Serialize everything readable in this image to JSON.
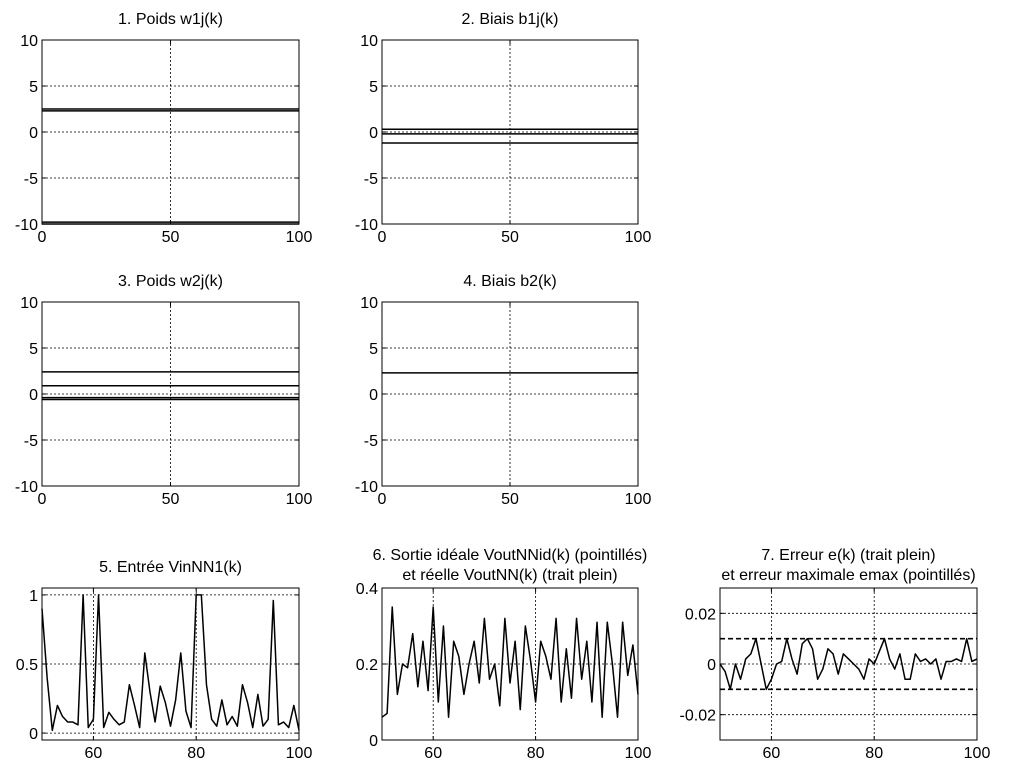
{
  "chart_data": [
    {
      "id": "p1",
      "type": "line",
      "title": "1. Poids w1j(k)",
      "xlim": [
        0,
        100
      ],
      "ylim": [
        -10,
        10
      ],
      "xticks": [
        0,
        50,
        100
      ],
      "yticks": [
        -10,
        -5,
        0,
        5,
        10
      ],
      "grid": true,
      "series": [
        {
          "x": [
            0,
            100
          ],
          "y": [
            2.5,
            2.5
          ],
          "color": "#000000"
        },
        {
          "x": [
            0,
            100
          ],
          "y": [
            2.3,
            2.3
          ],
          "color": "#000000"
        },
        {
          "x": [
            0,
            100
          ],
          "y": [
            -9.8,
            -9.8
          ],
          "color": "#000000"
        },
        {
          "x": [
            0,
            100
          ],
          "y": [
            -10,
            -10
          ],
          "color": "#000000"
        }
      ]
    },
    {
      "id": "p2",
      "type": "line",
      "title": "2. Biais b1j(k)",
      "xlim": [
        0,
        100
      ],
      "ylim": [
        -10,
        10
      ],
      "xticks": [
        0,
        50,
        100
      ],
      "yticks": [
        -10,
        -5,
        0,
        5,
        10
      ],
      "grid": true,
      "series": [
        {
          "x": [
            0,
            100
          ],
          "y": [
            0.3,
            0.3
          ],
          "color": "#000000"
        },
        {
          "x": [
            0,
            100
          ],
          "y": [
            -0.2,
            -0.2
          ],
          "color": "#000000"
        },
        {
          "x": [
            0,
            100
          ],
          "y": [
            -1.2,
            -1.2
          ],
          "color": "#000000"
        }
      ]
    },
    {
      "id": "p3",
      "type": "line",
      "title": "3. Poids w2j(k)",
      "xlim": [
        0,
        100
      ],
      "ylim": [
        -10,
        10
      ],
      "xticks": [
        0,
        50,
        100
      ],
      "yticks": [
        -10,
        -5,
        0,
        5,
        10
      ],
      "grid": true,
      "series": [
        {
          "x": [
            0,
            100
          ],
          "y": [
            2.4,
            2.4
          ],
          "color": "#000000"
        },
        {
          "x": [
            0,
            100
          ],
          "y": [
            0.9,
            0.9
          ],
          "color": "#000000"
        },
        {
          "x": [
            0,
            100
          ],
          "y": [
            -0.4,
            -0.4
          ],
          "color": "#000000"
        },
        {
          "x": [
            0,
            100
          ],
          "y": [
            -0.6,
            -0.6
          ],
          "color": "#000000"
        }
      ]
    },
    {
      "id": "p4",
      "type": "line",
      "title": "4. Biais b2(k)",
      "xlim": [
        0,
        100
      ],
      "ylim": [
        -10,
        10
      ],
      "xticks": [
        0,
        50,
        100
      ],
      "yticks": [
        -10,
        -5,
        0,
        5,
        10
      ],
      "grid": true,
      "series": [
        {
          "x": [
            0,
            100
          ],
          "y": [
            2.3,
            2.3
          ],
          "color": "#000000"
        }
      ]
    },
    {
      "id": "p5",
      "type": "line",
      "title": "5. Entrée VinNN1(k)",
      "xlim": [
        50,
        100
      ],
      "ylim": [
        -0.05,
        1.05
      ],
      "xticks": [
        60,
        80,
        100
      ],
      "yticks": [
        0,
        0.5,
        1
      ],
      "ytick_labels": [
        "0",
        "0.5",
        "1"
      ],
      "grid": true,
      "series": [
        {
          "x": [
            50,
            51,
            52,
            53,
            54,
            55,
            56,
            57,
            58,
            59,
            60,
            61,
            62,
            63,
            64,
            65,
            66,
            67,
            68,
            69,
            70,
            71,
            72,
            73,
            74,
            75,
            76,
            77,
            78,
            79,
            80,
            81,
            82,
            83,
            84,
            85,
            86,
            87,
            88,
            89,
            90,
            91,
            92,
            93,
            94,
            95,
            96,
            97,
            98,
            99,
            100
          ],
          "y": [
            0.9,
            0.4,
            0.02,
            0.2,
            0.12,
            0.08,
            0.08,
            0.06,
            1.0,
            0.04,
            0.1,
            1.0,
            0.04,
            0.15,
            0.1,
            0.06,
            0.08,
            0.35,
            0.2,
            0.04,
            0.58,
            0.3,
            0.08,
            0.34,
            0.22,
            0.05,
            0.24,
            0.58,
            0.16,
            0.04,
            1.0,
            1.0,
            0.35,
            0.1,
            0.05,
            0.24,
            0.06,
            0.12,
            0.05,
            0.35,
            0.22,
            0.04,
            0.28,
            0.05,
            0.1,
            0.96,
            0.06,
            0.08,
            0.04,
            0.2,
            0.02
          ],
          "color": "#000000"
        }
      ]
    },
    {
      "id": "p6",
      "type": "line",
      "title": "6. Sortie idéale VoutNNid(k) (pointillés)",
      "subtitle": "et réelle VoutNN(k) (trait plein)",
      "xlim": [
        50,
        100
      ],
      "ylim": [
        0,
        0.4
      ],
      "xticks": [
        60,
        80,
        100
      ],
      "yticks": [
        0,
        0.2,
        0.4
      ],
      "ytick_labels": [
        "0",
        "0.2",
        "0.4"
      ],
      "grid": true,
      "series": [
        {
          "x": [
            50,
            51,
            52,
            53,
            54,
            55,
            56,
            57,
            58,
            59,
            60,
            61,
            62,
            63,
            64,
            65,
            66,
            67,
            68,
            69,
            70,
            71,
            72,
            73,
            74,
            75,
            76,
            77,
            78,
            79,
            80,
            81,
            82,
            83,
            84,
            85,
            86,
            87,
            88,
            89,
            90,
            91,
            92,
            93,
            94,
            95,
            96,
            97,
            98,
            99,
            100
          ],
          "y": [
            0.06,
            0.07,
            0.35,
            0.12,
            0.2,
            0.19,
            0.28,
            0.14,
            0.26,
            0.13,
            0.35,
            0.1,
            0.3,
            0.06,
            0.26,
            0.22,
            0.12,
            0.2,
            0.26,
            0.15,
            0.32,
            0.16,
            0.2,
            0.09,
            0.32,
            0.15,
            0.26,
            0.08,
            0.3,
            0.21,
            0.1,
            0.26,
            0.22,
            0.16,
            0.32,
            0.1,
            0.24,
            0.11,
            0.32,
            0.16,
            0.26,
            0.1,
            0.31,
            0.06,
            0.31,
            0.2,
            0.06,
            0.31,
            0.17,
            0.25,
            0.12
          ],
          "color": "#000000"
        }
      ]
    },
    {
      "id": "p7",
      "type": "line",
      "title": "7. Erreur e(k) (trait plein)",
      "subtitle": "et erreur maximale emax (pointillés)",
      "xlim": [
        50,
        100
      ],
      "ylim": [
        -0.03,
        0.03
      ],
      "xticks": [
        60,
        80,
        100
      ],
      "yticks": [
        -0.02,
        0,
        0.02
      ],
      "ytick_labels": [
        "-0.02",
        "0",
        "0.02"
      ],
      "grid": true,
      "series": [
        {
          "x": [
            50,
            51,
            52,
            53,
            54,
            55,
            56,
            57,
            58,
            59,
            60,
            61,
            62,
            63,
            64,
            65,
            66,
            67,
            68,
            69,
            70,
            71,
            72,
            73,
            74,
            75,
            76,
            77,
            78,
            79,
            80,
            81,
            82,
            83,
            84,
            85,
            86,
            87,
            88,
            89,
            90,
            91,
            92,
            93,
            94,
            95,
            96,
            97,
            98,
            99,
            100
          ],
          "y": [
            0,
            -0.003,
            -0.01,
            0,
            -0.006,
            0.002,
            0.004,
            0.01,
            0,
            -0.01,
            -0.006,
            0,
            0.001,
            0.01,
            0.002,
            -0.004,
            0.008,
            0.01,
            0.006,
            -0.006,
            -0.002,
            0.006,
            0.004,
            -0.004,
            0.004,
            0.002,
            0,
            -0.002,
            -0.006,
            0.002,
            0,
            0.005,
            0.01,
            0.002,
            -0.002,
            0.004,
            -0.006,
            -0.006,
            0.004,
            0.001,
            0.002,
            0,
            0.002,
            -0.006,
            0.001,
            0.001,
            0.002,
            0.001,
            0.01,
            0.001,
            0.002
          ],
          "color": "#000000"
        },
        {
          "x": [
            50,
            100
          ],
          "y": [
            0.01,
            0.01
          ],
          "color": "#000000",
          "dashed": true
        },
        {
          "x": [
            50,
            100
          ],
          "y": [
            -0.01,
            -0.01
          ],
          "color": "#000000",
          "dashed": true
        }
      ]
    }
  ]
}
